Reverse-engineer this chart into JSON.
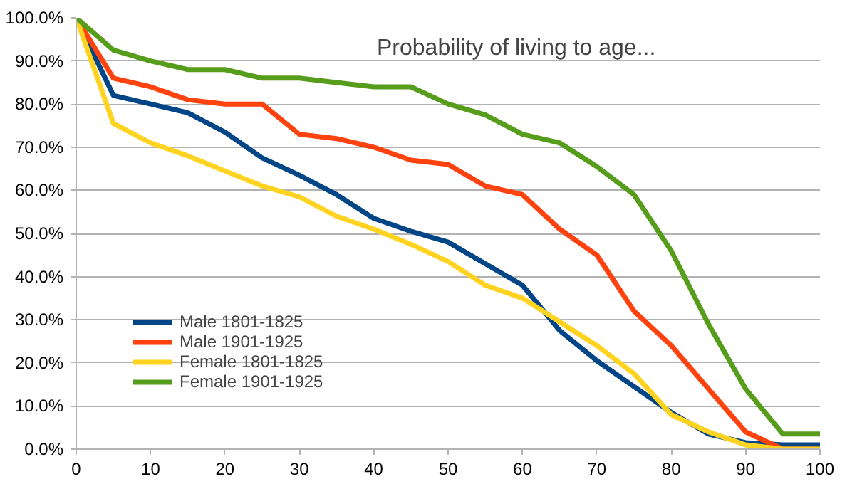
{
  "chart_data": {
    "type": "line",
    "title": "Probability of living to age...",
    "x": [
      0,
      5,
      10,
      15,
      20,
      25,
      30,
      35,
      40,
      45,
      50,
      55,
      60,
      65,
      70,
      75,
      80,
      85,
      90,
      95,
      100
    ],
    "series": [
      {
        "name": "Male 1801-1825",
        "color": "#004586",
        "values": [
          100,
          82,
          80,
          78,
          73.5,
          67.5,
          63.5,
          59,
          53.5,
          50.5,
          48,
          43,
          38,
          27.5,
          20.5,
          14.5,
          8.5,
          3.5,
          1.5,
          1,
          1
        ]
      },
      {
        "name": "Male 1901-1925",
        "color": "#ff420e",
        "values": [
          100,
          86,
          84,
          81,
          80,
          80,
          73,
          72,
          70,
          67,
          66,
          61,
          59,
          51,
          45,
          32,
          24,
          14,
          4,
          0,
          0
        ]
      },
      {
        "name": "Female 1801-1825",
        "color": "#ffd320",
        "values": [
          100,
          75.5,
          71,
          68,
          64.5,
          61,
          58.5,
          54,
          51,
          47.5,
          43.5,
          38,
          35,
          29.5,
          24,
          17.5,
          8,
          4,
          1,
          0,
          0
        ]
      },
      {
        "name": "Female 1901-1925",
        "color": "#579d1c",
        "values": [
          100,
          92.5,
          90,
          88,
          88,
          86,
          86,
          85,
          84,
          84,
          80,
          77.5,
          73,
          71,
          65.5,
          59,
          46,
          29,
          14,
          3.5,
          3.5
        ]
      }
    ],
    "xlim": [
      0,
      100
    ],
    "xticks": [
      0,
      10,
      20,
      30,
      40,
      50,
      60,
      70,
      80,
      90,
      100
    ],
    "ylim": [
      0,
      100
    ],
    "yticks": [
      {
        "value": 0,
        "label": "0.0%"
      },
      {
        "value": 10,
        "label": "10.0%"
      },
      {
        "value": 20,
        "label": "20.0%"
      },
      {
        "value": 30,
        "label": "30.0%"
      },
      {
        "value": 40,
        "label": "40.0%"
      },
      {
        "value": 50,
        "label": "50.0%"
      },
      {
        "value": 60,
        "label": "60.0%"
      },
      {
        "value": 70,
        "label": "70.0%"
      },
      {
        "value": 80,
        "label": "80.0%"
      },
      {
        "value": 90,
        "label": "90.0%"
      },
      {
        "value": 100,
        "label": "100.0%"
      }
    ],
    "grid": "y",
    "legend": "left",
    "marker": "none",
    "line_style": "solid"
  }
}
